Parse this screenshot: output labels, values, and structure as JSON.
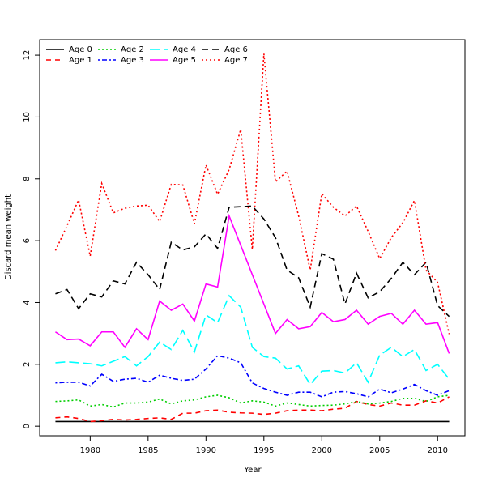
{
  "chart_data": {
    "type": "line",
    "x_label": "Year",
    "y_label": "Discard mean weight",
    "x": [
      1977,
      1978,
      1979,
      1980,
      1981,
      1982,
      1983,
      1984,
      1985,
      1986,
      1987,
      1988,
      1989,
      1990,
      1991,
      1992,
      1993,
      1994,
      1995,
      1996,
      1997,
      1998,
      1999,
      2000,
      2001,
      2002,
      2003,
      2004,
      2005,
      2006,
      2007,
      2008,
      2009,
      2010,
      2011
    ],
    "xlim": [
      1975.64,
      2012.36
    ],
    "xticks": [
      1980,
      1985,
      1990,
      1995,
      2000,
      2005,
      2010
    ],
    "ylim": [
      -0.31,
      12.5
    ],
    "yticks": [
      0,
      2,
      4,
      6,
      8,
      10,
      12
    ],
    "legend": "topleft",
    "series": [
      {
        "name": "Age 0",
        "color": "#000000",
        "dash": "none",
        "values": [
          0.15,
          0.15,
          0.15,
          0.15,
          0.15,
          0.15,
          0.15,
          0.15,
          0.15,
          0.15,
          0.15,
          0.15,
          0.15,
          0.15,
          0.15,
          0.15,
          0.15,
          0.15,
          0.15,
          0.15,
          0.15,
          0.15,
          0.15,
          0.15,
          0.15,
          0.15,
          0.15,
          0.15,
          0.15,
          0.15,
          0.15,
          0.15,
          0.15,
          0.15,
          0.15
        ]
      },
      {
        "name": "Age 1",
        "color": "#ff0000",
        "dash": "6,5",
        "values": [
          0.27,
          0.3,
          0.25,
          0.15,
          0.18,
          0.22,
          0.2,
          0.22,
          0.25,
          0.27,
          0.22,
          0.42,
          0.42,
          0.5,
          0.52,
          0.45,
          0.43,
          0.42,
          0.38,
          0.42,
          0.5,
          0.52,
          0.52,
          0.5,
          0.55,
          0.58,
          0.8,
          0.7,
          0.65,
          0.75,
          0.68,
          0.68,
          0.82,
          0.75,
          0.95
        ]
      },
      {
        "name": "Age 2",
        "color": "#00cd00",
        "dash": "2,3",
        "values": [
          0.8,
          0.82,
          0.85,
          0.65,
          0.7,
          0.62,
          0.75,
          0.75,
          0.78,
          0.88,
          0.72,
          0.82,
          0.85,
          0.95,
          1.0,
          0.92,
          0.75,
          0.82,
          0.78,
          0.65,
          0.75,
          0.7,
          0.65,
          0.67,
          0.68,
          0.72,
          0.8,
          0.72,
          0.75,
          0.8,
          0.9,
          0.9,
          0.8,
          0.95,
          1.0
        ]
      },
      {
        "name": "Age 3",
        "color": "#0000ff",
        "dash": "2,3,6,3",
        "values": [
          1.4,
          1.42,
          1.42,
          1.3,
          1.68,
          1.45,
          1.52,
          1.55,
          1.42,
          1.65,
          1.55,
          1.48,
          1.52,
          1.85,
          2.28,
          2.2,
          2.05,
          1.4,
          1.22,
          1.1,
          1.0,
          1.1,
          1.1,
          0.95,
          1.1,
          1.12,
          1.05,
          0.95,
          1.2,
          1.08,
          1.2,
          1.35,
          1.15,
          1.0,
          1.15
        ]
      },
      {
        "name": "Age 4",
        "color": "#00ffff",
        "dash": "12,5",
        "values": [
          2.05,
          2.08,
          2.05,
          2.02,
          1.95,
          2.1,
          2.25,
          1.95,
          2.25,
          2.72,
          2.48,
          3.1,
          2.4,
          3.6,
          3.35,
          4.22,
          3.85,
          2.55,
          2.25,
          2.2,
          1.85,
          1.95,
          1.35,
          1.78,
          1.8,
          1.72,
          2.05,
          1.42,
          2.3,
          2.55,
          2.25,
          2.48,
          1.8,
          2.0,
          1.52
        ]
      },
      {
        "name": "Age 5",
        "color": "#ff00ff",
        "dash": "none",
        "values": [
          3.05,
          2.8,
          2.82,
          2.6,
          3.05,
          3.05,
          2.55,
          3.15,
          2.8,
          4.05,
          3.75,
          3.95,
          3.4,
          4.6,
          4.5,
          6.8,
          5.85,
          4.9,
          3.95,
          3.0,
          3.45,
          3.15,
          3.22,
          3.68,
          3.38,
          3.45,
          3.75,
          3.3,
          3.55,
          3.65,
          3.3,
          3.75,
          3.3,
          3.35,
          2.35
        ]
      },
      {
        "name": "Age 6",
        "color": "#000000",
        "dash": "8,5",
        "values": [
          4.28,
          4.42,
          3.8,
          4.28,
          4.18,
          4.7,
          4.6,
          5.3,
          4.9,
          4.42,
          5.95,
          5.7,
          5.8,
          6.22,
          5.75,
          7.08,
          7.1,
          7.12,
          6.7,
          6.1,
          5.05,
          4.8,
          3.85,
          5.58,
          5.4,
          3.95,
          4.95,
          4.15,
          4.35,
          4.78,
          5.3,
          4.9,
          5.3,
          3.9,
          3.55
        ]
      },
      {
        "name": "Age 7",
        "color": "#ff0000",
        "dash": "2,3",
        "values": [
          5.68,
          6.48,
          7.32,
          5.5,
          7.85,
          6.9,
          7.05,
          7.12,
          7.15,
          6.62,
          7.82,
          7.8,
          6.55,
          8.45,
          7.5,
          8.3,
          9.6,
          5.72,
          12.05,
          7.9,
          8.25,
          6.8,
          5.05,
          7.52,
          7.08,
          6.8,
          7.12,
          6.3,
          5.42,
          6.1,
          6.58,
          7.3,
          5.05,
          4.65,
          2.98
        ]
      }
    ]
  }
}
